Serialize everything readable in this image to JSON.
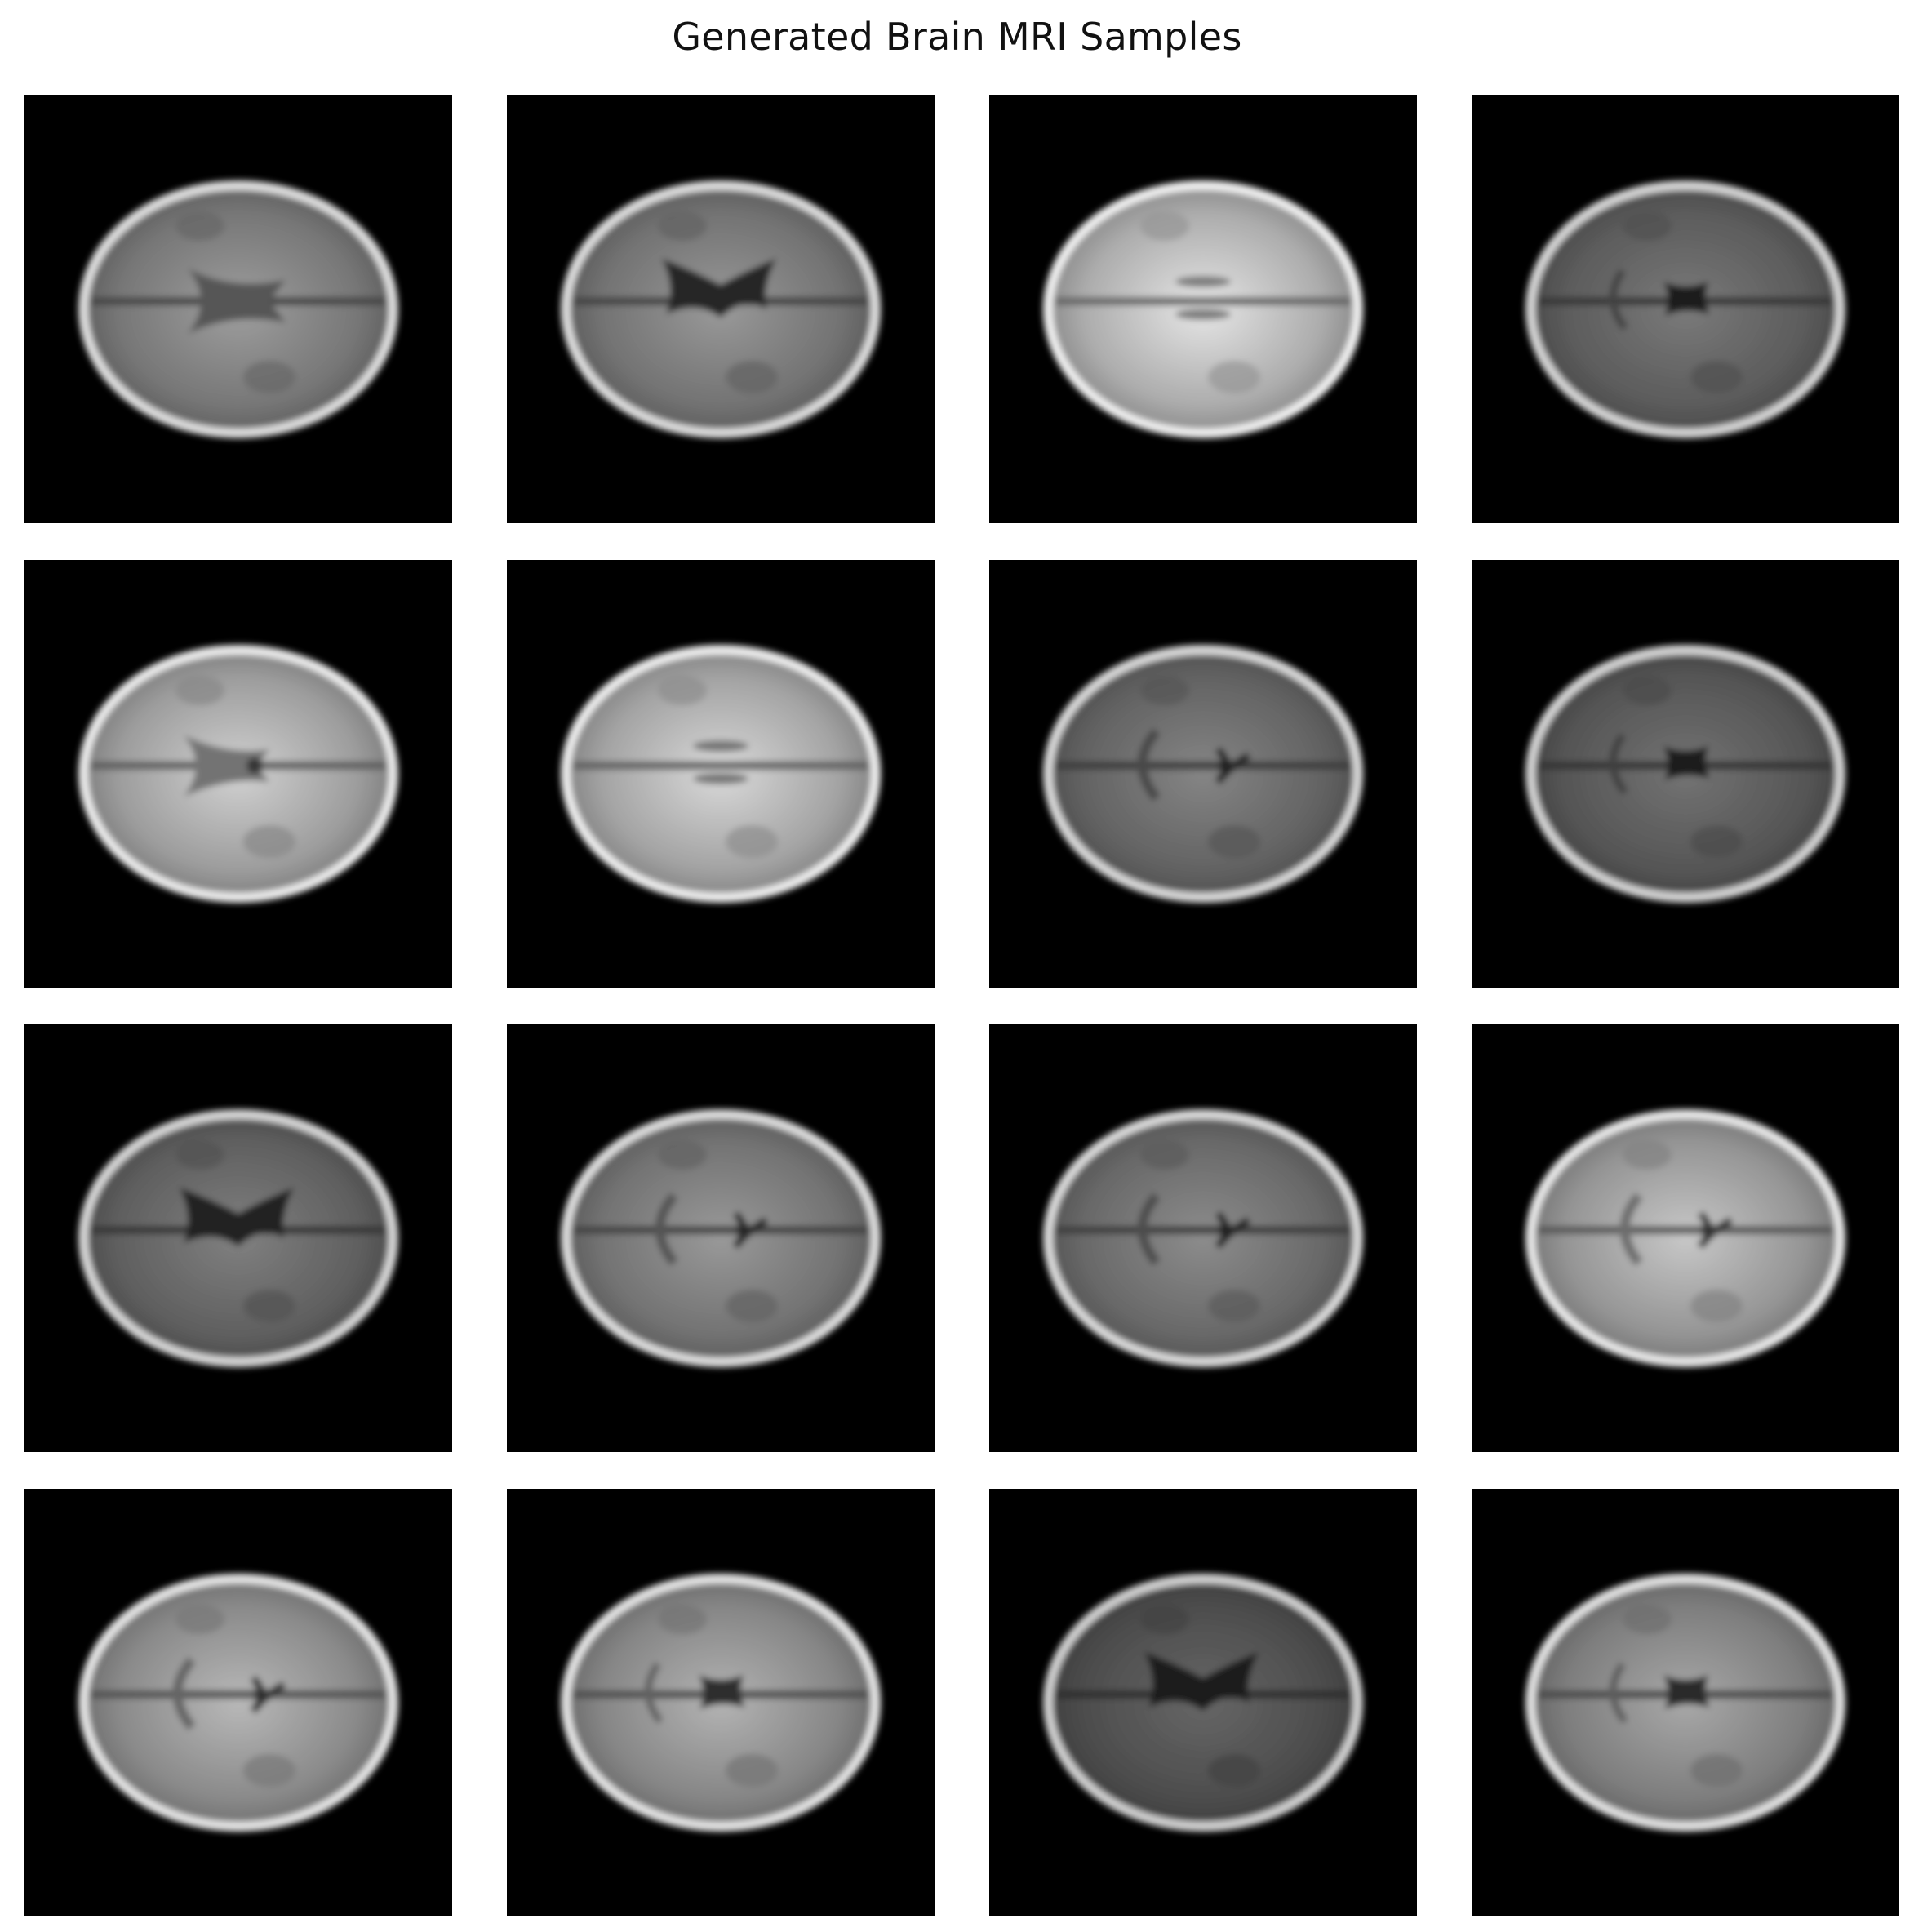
{
  "figure": {
    "title": "Generated Brain MRI Samples"
  },
  "grid": {
    "rows": 4,
    "cols": 4
  },
  "samples": [
    {
      "id": 1,
      "brightness": 0.62,
      "ventricle": "faint-v"
    },
    {
      "id": 2,
      "brightness": 0.6,
      "ventricle": "dark-x"
    },
    {
      "id": 3,
      "brightness": 0.9,
      "ventricle": "slits"
    },
    {
      "id": 4,
      "brightness": 0.48,
      "ventricle": "small-x"
    },
    {
      "id": 5,
      "brightness": 0.82,
      "ventricle": "v-shape"
    },
    {
      "id": 6,
      "brightness": 0.85,
      "ventricle": "slits"
    },
    {
      "id": 7,
      "brightness": 0.52,
      "ventricle": "curved"
    },
    {
      "id": 8,
      "brightness": 0.45,
      "ventricle": "small-x"
    },
    {
      "id": 9,
      "brightness": 0.5,
      "ventricle": "dark-x"
    },
    {
      "id": 10,
      "brightness": 0.6,
      "ventricle": "curved"
    },
    {
      "id": 11,
      "brightness": 0.55,
      "ventricle": "curved"
    },
    {
      "id": 12,
      "brightness": 0.78,
      "ventricle": "curved"
    },
    {
      "id": 13,
      "brightness": 0.72,
      "ventricle": "curved"
    },
    {
      "id": 14,
      "brightness": 0.7,
      "ventricle": "small-x"
    },
    {
      "id": 15,
      "brightness": 0.4,
      "ventricle": "dark-x"
    },
    {
      "id": 16,
      "brightness": 0.66,
      "ventricle": "small-x"
    }
  ]
}
